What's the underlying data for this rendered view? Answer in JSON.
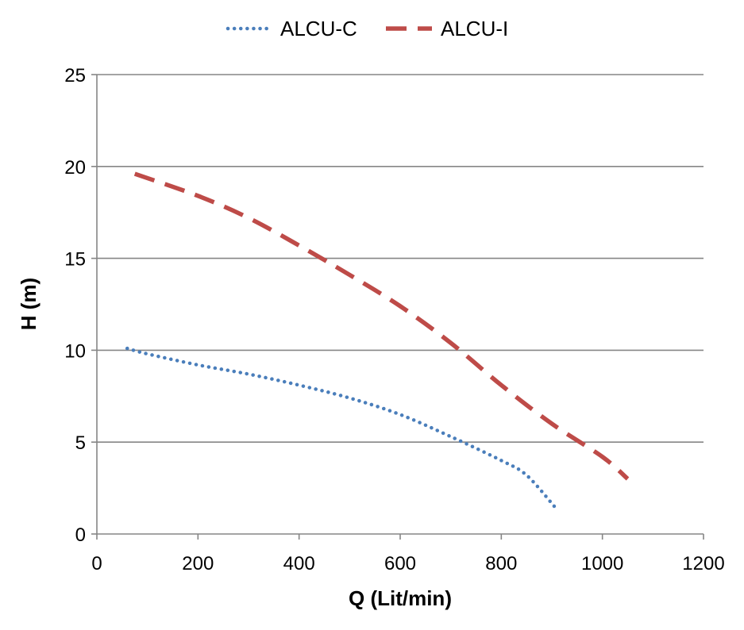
{
  "chart_data": {
    "type": "line",
    "title": "",
    "xlabel": "Q (Lit/min)",
    "ylabel": "H (m)",
    "xlim": [
      0,
      1200
    ],
    "ylim": [
      0,
      25
    ],
    "x_ticks": [
      0,
      200,
      400,
      600,
      800,
      1000,
      1200
    ],
    "y_ticks": [
      0,
      5,
      10,
      15,
      20,
      25
    ],
    "grid": "horizontal",
    "legend_position": "top-center",
    "series": [
      {
        "name": "ALCU-C",
        "line_style": "dotted",
        "color": "#4a7ebb",
        "points": [
          {
            "x": 60,
            "y": 10.1
          },
          {
            "x": 100,
            "y": 9.8
          },
          {
            "x": 200,
            "y": 9.2
          },
          {
            "x": 300,
            "y": 8.7
          },
          {
            "x": 400,
            "y": 8.1
          },
          {
            "x": 500,
            "y": 7.4
          },
          {
            "x": 600,
            "y": 6.5
          },
          {
            "x": 700,
            "y": 5.3
          },
          {
            "x": 800,
            "y": 4.0
          },
          {
            "x": 850,
            "y": 3.2
          },
          {
            "x": 905,
            "y": 1.5
          }
        ]
      },
      {
        "name": "ALCU-I",
        "line_style": "dashed",
        "color": "#be4b48",
        "points": [
          {
            "x": 75,
            "y": 19.6
          },
          {
            "x": 200,
            "y": 18.4
          },
          {
            "x": 300,
            "y": 17.2
          },
          {
            "x": 400,
            "y": 15.7
          },
          {
            "x": 500,
            "y": 14.1
          },
          {
            "x": 600,
            "y": 12.4
          },
          {
            "x": 700,
            "y": 10.4
          },
          {
            "x": 800,
            "y": 8.1
          },
          {
            "x": 900,
            "y": 6.0
          },
          {
            "x": 1000,
            "y": 4.2
          },
          {
            "x": 1050,
            "y": 3.0
          }
        ]
      }
    ]
  }
}
